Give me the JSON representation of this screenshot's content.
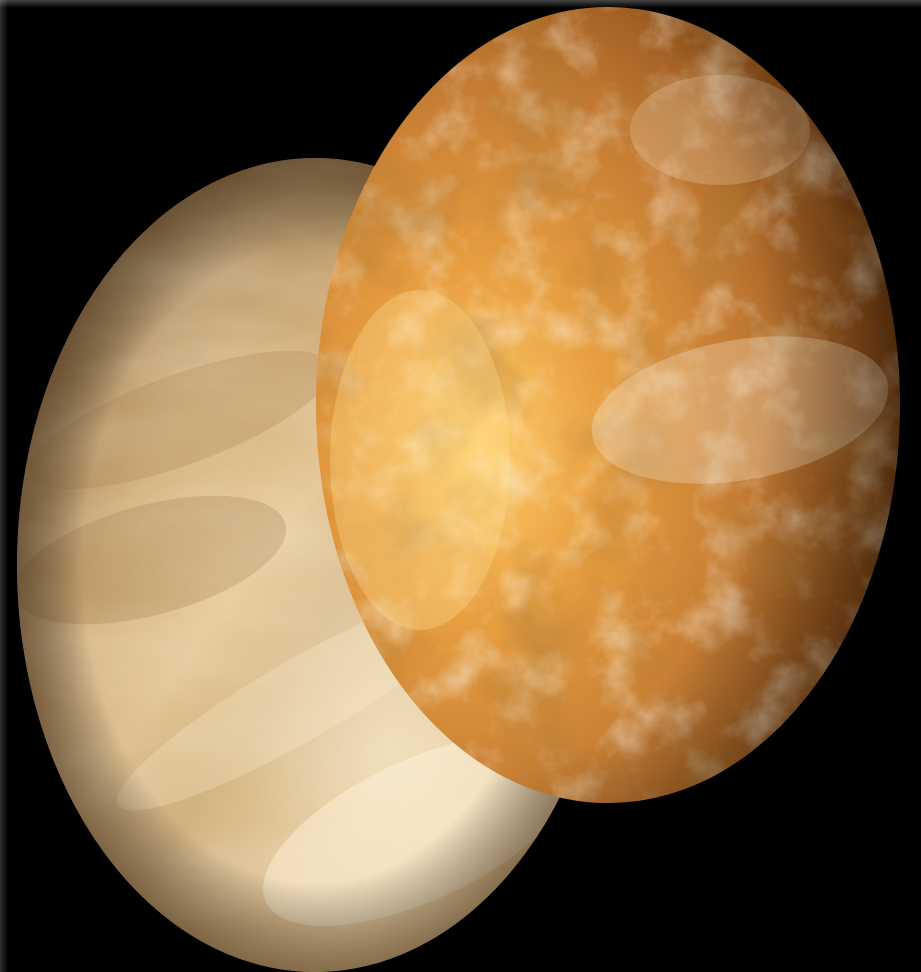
{
  "scene": {
    "background_color": "#000000",
    "subjects": [
      {
        "name": "cloud-covered-venus",
        "palette": [
          "#f3dcae",
          "#d9b47c",
          "#b68d55",
          "#7a5a30"
        ]
      },
      {
        "name": "surface-venus-radar",
        "palette": [
          "#ffd890",
          "#e39a3a",
          "#b4621a",
          "#6b3208",
          "#f2e6cf"
        ]
      }
    ]
  }
}
